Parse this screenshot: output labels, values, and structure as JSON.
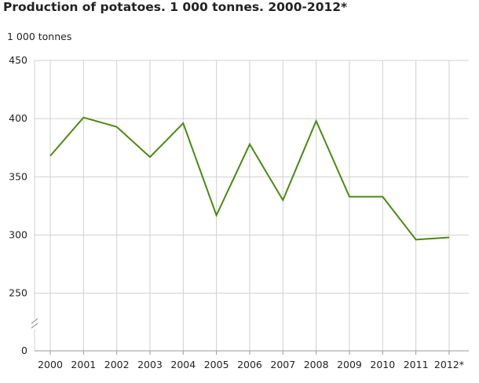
{
  "title": "Production of potatoes. 1 000 tonnes. 2000-2012*",
  "unit_label": "1 000 tonnes",
  "colors": {
    "series": "#4a8a10",
    "grid": "#d0d0d0",
    "axis": "#999999"
  },
  "chart_data": {
    "type": "line",
    "title": "Production of potatoes. 1 000 tonnes. 2000-2012*",
    "ylabel": "1 000 tonnes",
    "xlabel": "",
    "categories": [
      "2000",
      "2001",
      "2002",
      "2003",
      "2004",
      "2005",
      "2006",
      "2007",
      "2008",
      "2009",
      "2010",
      "2011",
      "2012*"
    ],
    "values": [
      368,
      401,
      393,
      367,
      396,
      317,
      378,
      330,
      398,
      333,
      333,
      296,
      298
    ],
    "y_ticks": [
      "450",
      "400",
      "350",
      "300",
      "250",
      "0"
    ],
    "y_tick_values": [
      450,
      400,
      350,
      300,
      250,
      0
    ],
    "axis_break": true,
    "ylim": [
      0,
      450
    ],
    "grid": true,
    "legend": "none"
  }
}
